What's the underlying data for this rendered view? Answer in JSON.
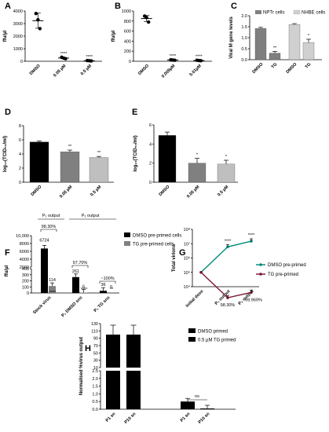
{
  "chart_data": [
    {
      "panel": "A",
      "type": "scatter",
      "ylabel": "ffu/µl",
      "ylim": [
        0,
        4000
      ],
      "yticks": [
        0,
        1000,
        2000,
        3000,
        4000
      ],
      "categories": [
        "DMSO",
        "0.05 µM",
        "0.5 µM"
      ],
      "points": [
        [
          3800,
          3300,
          2600
        ],
        [
          320,
          250,
          200
        ],
        [
          60,
          40,
          30
        ]
      ],
      "means": [
        3230,
        257,
        43
      ],
      "errors": [
        600,
        60,
        25
      ],
      "stars": [
        "",
        "****",
        "****"
      ]
    },
    {
      "panel": "B",
      "type": "scatter",
      "ylabel": "ffu/µl",
      "ylim": [
        0,
        1000
      ],
      "yticks": [
        0,
        200,
        400,
        600,
        800,
        1000
      ],
      "categories": [
        "DMSO",
        "0.005µM",
        "0.01µM"
      ],
      "points": [
        [
          900,
          870,
          780
        ],
        [
          30,
          25,
          20
        ],
        [
          20,
          15,
          10
        ]
      ],
      "means": [
        850,
        25,
        15
      ],
      "errors": [
        60,
        8,
        5
      ],
      "stars": [
        "",
        "****",
        "****"
      ]
    },
    {
      "panel": "C",
      "type": "bar",
      "ylabel": "Viral M gene levels",
      "ylim": [
        0,
        2.0
      ],
      "yticks": [
        0.0,
        0.5,
        1.0,
        1.5,
        2.0
      ],
      "groups": [
        "NPTr cells",
        "NHBE cells"
      ],
      "categories": [
        "DMSO",
        "TG",
        "DMSO",
        "TG"
      ],
      "values": [
        1.42,
        0.3,
        1.6,
        0.78
      ],
      "errors": [
        0.05,
        0.08,
        0.04,
        0.15
      ],
      "colors": [
        "#7f7f7f",
        "#7f7f7f",
        "#d0d0d0",
        "#d0d0d0"
      ],
      "stars": [
        "",
        "**",
        "",
        "*"
      ]
    },
    {
      "panel": "D",
      "type": "bar",
      "ylabel": "log₁₀(TCID₅₀/ml)",
      "ylim": [
        0,
        8
      ],
      "yticks": [
        0,
        2,
        4,
        6,
        8
      ],
      "categories": [
        "DMSO",
        "0.05 µM",
        "0.5 µM"
      ],
      "values": [
        5.7,
        4.3,
        3.5
      ],
      "errors": [
        0.12,
        0.25,
        0.15
      ],
      "colors": [
        "#000000",
        "#808080",
        "#bfbfbf"
      ],
      "stars": [
        "",
        "**",
        "**"
      ]
    },
    {
      "panel": "E",
      "type": "bar",
      "ylabel": "log₁₀(TCID₅₀/ml)",
      "ylim": [
        0,
        6
      ],
      "yticks": [
        0,
        2,
        4,
        6
      ],
      "categories": [
        "DMSO",
        "0.05 µM",
        "0.5 µM"
      ],
      "values": [
        4.9,
        2.0,
        1.9
      ],
      "errors": [
        0.35,
        0.5,
        0.4
      ],
      "colors": [
        "#000000",
        "#808080",
        "#bfbfbf"
      ],
      "stars": [
        "",
        "*",
        "*"
      ]
    },
    {
      "panel": "F",
      "type": "bar",
      "ylabel": "ffu/µl",
      "yticks": [
        "0",
        "100",
        "200",
        "300",
        "400",
        "2000",
        "4000",
        "6000",
        "8000",
        "10,000"
      ],
      "categories": [
        "Stock virus",
        "P₁ DMSO sns",
        "P₁ TG sns"
      ],
      "series": [
        {
          "name": "DMSO pre-primed cells",
          "values": [
            6724,
            261,
            36
          ],
          "color": "#000000"
        },
        {
          "name": "TG pre-primed cells",
          "values": [
            114,
            6,
            0
          ],
          "color": "#808080"
        }
      ],
      "stars": [
        "****",
        "****",
        "**"
      ],
      "brackets": [
        "98.30%",
        "97.70%",
        "~100%"
      ],
      "headers": [
        "P₁ output",
        "P₂ output"
      ]
    },
    {
      "panel": "G",
      "type": "line",
      "ylabel": "Total virions",
      "yscale": "log",
      "yticks": [
        "10⁴",
        "10⁵",
        "10⁶",
        "10⁷",
        "10⁸"
      ],
      "categories": [
        "Initial dose",
        "P₁ output",
        "P₂ output"
      ],
      "series": [
        {
          "name": "DMSO pre-primed",
          "values": [
            100000,
            6000000,
            15000000
          ],
          "color": "#00897b"
        },
        {
          "name": "TG pre-primed",
          "values": [
            100000,
            1700,
            4000
          ],
          "color": "#7b1530"
        }
      ],
      "stars": [
        "",
        "****",
        "****"
      ],
      "annotations": [
        "98.30%",
        "99.969%"
      ]
    },
    {
      "panel": "H",
      "type": "bar",
      "ylabel": "Normalised %virus output",
      "yticks": [
        "0.0",
        "0.5",
        "1.0",
        "1.5",
        "2.0",
        "2.5",
        "10",
        "30",
        "50",
        "70",
        "90",
        "110",
        "130"
      ],
      "categories": [
        "P1 sn",
        "P10 sn",
        "P1 sn",
        "P10 sn"
      ],
      "series": [
        {
          "name": "DMSO primed",
          "values": [
            100,
            100,
            null,
            null
          ],
          "color": "#000000"
        },
        {
          "name": "0.5 µM TG primed",
          "values": [
            null,
            null,
            0.5,
            0.05
          ],
          "color": "#000000"
        }
      ],
      "annotations": [
        "ns"
      ]
    }
  ]
}
